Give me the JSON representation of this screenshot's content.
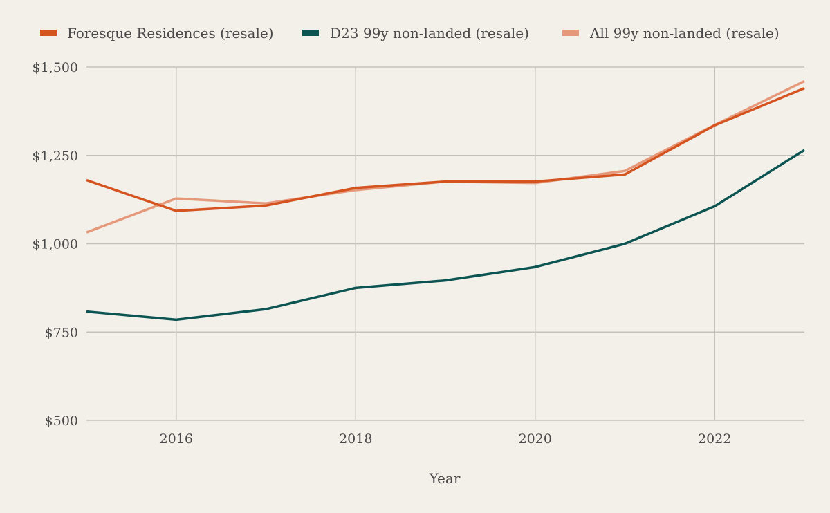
{
  "chart_data": {
    "type": "line",
    "title": "",
    "xlabel": "Year",
    "ylabel": "",
    "x": [
      2015,
      2016,
      2017,
      2018,
      2019,
      2020,
      2021,
      2022,
      2023
    ],
    "xlim": [
      2015,
      2023
    ],
    "ylim": [
      500,
      1500
    ],
    "x_ticks": [
      2016,
      2018,
      2020,
      2022
    ],
    "x_tick_labels": [
      "2016",
      "2018",
      "2020",
      "2022"
    ],
    "y_ticks": [
      500,
      750,
      1000,
      1250,
      1500
    ],
    "y_tick_labels": [
      "$500",
      "$750",
      "$1,000",
      "$1,250",
      "$1,500"
    ],
    "grid": true,
    "legend_position": "top",
    "series": [
      {
        "name": "Foresque Residences (resale)",
        "color": "#d4531f",
        "values": [
          1180,
          1093,
          1108,
          1158,
          1176,
          1176,
          1196,
          1335,
          1440
        ]
      },
      {
        "name": "D23 99y non-landed (resale)",
        "color": "#0b5452",
        "values": [
          808,
          785,
          815,
          875,
          896,
          934,
          1000,
          1106,
          1265
        ]
      },
      {
        "name": "All 99y non-landed (resale)",
        "color": "#e6997a",
        "values": [
          1032,
          1128,
          1114,
          1152,
          1176,
          1172,
          1206,
          1336,
          1460
        ]
      }
    ]
  }
}
